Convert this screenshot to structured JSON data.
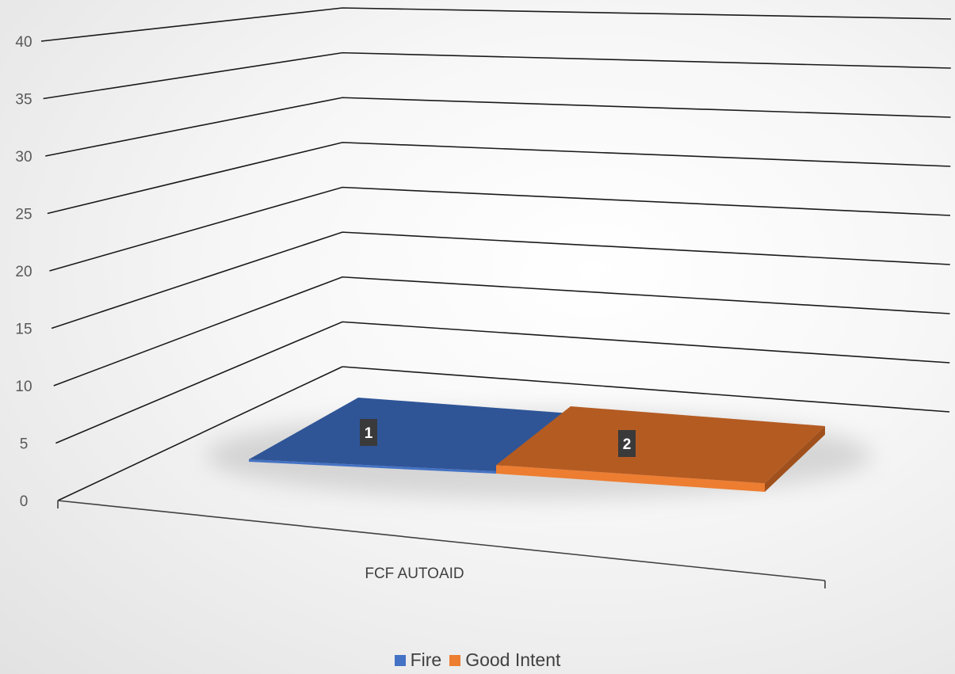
{
  "chart_data": {
    "type": "bar",
    "categories": [
      "FCF AUTOAID"
    ],
    "series": [
      {
        "name": "Fire",
        "values": [
          1
        ],
        "color": "#4472C4"
      },
      {
        "name": "Good Intent",
        "values": [
          2
        ],
        "color": "#ED7D31"
      }
    ],
    "ylim": [
      0,
      40
    ],
    "yticks": [
      "0",
      "5",
      "10",
      "15",
      "20",
      "25",
      "30",
      "35",
      "40"
    ],
    "title": "",
    "xlabel": "",
    "ylabel": "",
    "grid": true,
    "legend_position": "bottom",
    "data_labels": [
      "1",
      "2"
    ]
  }
}
